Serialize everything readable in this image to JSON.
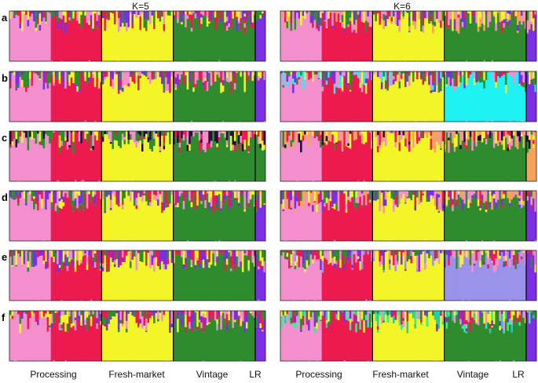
{
  "chart_data": {
    "type": "stacked-bar",
    "colors": {
      "c1": "#f48fcd",
      "c2": "#ec1a4f",
      "c3": "#f3f527",
      "c4": "#2e8b2e",
      "c5": "#7a2fe3",
      "c6": "#f5a35a",
      "cyan": "#1ff2f2",
      "dark": "#2a0a3c",
      "lavender": "#9b93ea",
      "mint": "#30f090",
      "teal": "#1fcfb0"
    },
    "panels": [
      {
        "title": "K=5",
        "groups": [
          "Processing",
          "Fresh-market",
          "Vintage",
          "LR"
        ]
      },
      {
        "title": "K=6",
        "groups": [
          "Processing",
          "Fresh-market",
          "Vintage",
          "LR"
        ]
      }
    ],
    "rows": [
      "a",
      "b",
      "c",
      "d",
      "e",
      "f"
    ],
    "group_widths": [
      0.36,
      0.28,
      0.32,
      0.04
    ],
    "row_specs": {
      "a": {
        "K5": {
          "bases": [
            "c1",
            "c2",
            "c3",
            "c4",
            "c5"
          ],
          "extras": []
        },
        "K6": {
          "bases": [
            "c1",
            "c2",
            "c3",
            "c4",
            "c5"
          ],
          "extras": [
            "c6"
          ]
        }
      },
      "b": {
        "K5": {
          "bases": [
            "c1",
            "c2",
            "c3",
            "c4",
            "c5"
          ],
          "extras": []
        },
        "K6": {
          "bases": [
            "c1",
            "c2",
            "c3",
            "cyan",
            "c5"
          ],
          "extras": [
            "c4"
          ]
        }
      },
      "c": {
        "K5": {
          "bases": [
            "c1",
            "c2",
            "c3",
            "c4",
            "c4"
          ],
          "extras": [
            "dark"
          ]
        },
        "K6": {
          "bases": [
            "c1",
            "c2",
            "c3",
            "c4",
            "c6"
          ],
          "extras": [
            "dark",
            "c6"
          ]
        }
      },
      "d": {
        "K5": {
          "bases": [
            "c1",
            "c2",
            "c3",
            "c4",
            "c5"
          ],
          "extras": []
        },
        "K6": {
          "bases": [
            "c1",
            "c2",
            "c3",
            "c4",
            "c5"
          ],
          "extras": [
            "c6"
          ]
        }
      },
      "e": {
        "K5": {
          "bases": [
            "c1",
            "c2",
            "c3",
            "c4",
            "c5"
          ],
          "extras": []
        },
        "K6": {
          "bases": [
            "c1",
            "c2",
            "c3",
            "lavender",
            "c5"
          ],
          "extras": [
            "c4"
          ]
        }
      },
      "f": {
        "K5": {
          "bases": [
            "c1",
            "c2",
            "c3",
            "c4",
            "c5"
          ],
          "extras": []
        },
        "K6": {
          "bases": [
            "c1",
            "c2",
            "c3",
            "c4",
            "c5"
          ],
          "extras": [
            "mint",
            "teal"
          ]
        }
      }
    }
  }
}
